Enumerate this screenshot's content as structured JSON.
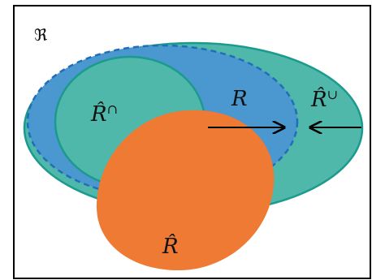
{
  "labels": {
    "universe": "ℜ",
    "r_inner": "R̂",
    "r_inner_sup": "∩",
    "r_true": "R",
    "r_outer": "R̂",
    "r_outer_sup": "∪",
    "r_estimate": "R̂"
  },
  "colors": {
    "teal_fill": "#4fb8aa",
    "teal_stroke": "#1b9a8d",
    "blue_fill": "#4b97d0",
    "blue_dash": "#1f6fb8",
    "orange_fill": "#ee7a33",
    "arrow": "#000000",
    "frame": "#000000"
  }
}
